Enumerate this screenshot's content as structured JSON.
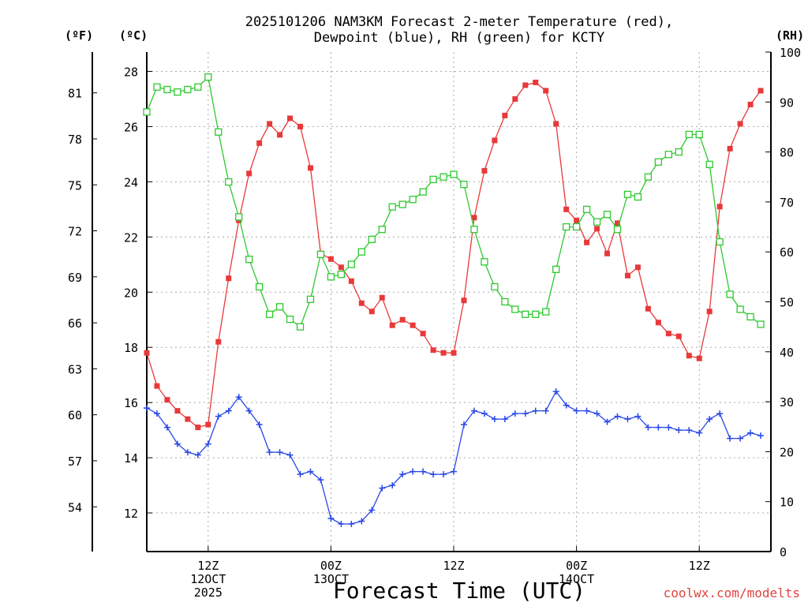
{
  "chart_data": {
    "type": "line",
    "title_line1": "2025101206 NAM3KM Forecast 2-meter Temperature (red),",
    "title_line2": "Dewpoint (blue), RH (green) for KCTY",
    "xlabel": "Forecast Time (UTC)",
    "units": {
      "fahrenheit": "(ºF)",
      "celsius": "(ºC)",
      "rh": "(RH)"
    },
    "forecast_hours": [
      0,
      61
    ],
    "ylim_celsius": [
      10.6,
      28.7
    ],
    "ylim_rh": [
      0,
      100
    ],
    "y_ticks_celsius": [
      12,
      14,
      16,
      18,
      20,
      22,
      24,
      26,
      28
    ],
    "y_ticks_fahrenheit": [
      54,
      57,
      60,
      63,
      66,
      69,
      72,
      75,
      78,
      81
    ],
    "y_ticks_rh": [
      0,
      10,
      20,
      30,
      40,
      50,
      60,
      70,
      80,
      90,
      100
    ],
    "x_ticks": [
      {
        "hour": 6,
        "lines": [
          "12Z",
          "12OCT",
          "2025"
        ]
      },
      {
        "hour": 18,
        "lines": [
          "00Z",
          "13OCT"
        ]
      },
      {
        "hour": 30,
        "lines": [
          "12Z"
        ]
      },
      {
        "hour": 42,
        "lines": [
          "00Z",
          "14OCT"
        ]
      },
      {
        "hour": 54,
        "lines": [
          "12Z"
        ]
      }
    ],
    "series": [
      {
        "name": "Temperature",
        "units": "C",
        "color": "#e8393a",
        "marker": "filled-square",
        "values": [
          17.8,
          16.6,
          16.1,
          15.7,
          15.4,
          15.1,
          15.2,
          18.2,
          20.5,
          22.6,
          24.3,
          25.4,
          26.1,
          25.7,
          26.3,
          26.0,
          24.5,
          21.4,
          21.2,
          20.9,
          20.4,
          19.6,
          19.3,
          19.8,
          18.8,
          19.0,
          18.8,
          18.5,
          17.9,
          17.8,
          17.8,
          19.7,
          22.7,
          24.4,
          25.5,
          26.4,
          27.0,
          27.5,
          27.6,
          27.3,
          26.1,
          23.0,
          22.6,
          21.8,
          22.3,
          21.4,
          22.5,
          20.6,
          20.9,
          19.4,
          18.9,
          18.5,
          18.4,
          17.7,
          17.6,
          19.3,
          23.1,
          25.2,
          26.1,
          26.8,
          27.3
        ]
      },
      {
        "name": "Dewpoint",
        "units": "C",
        "color": "#2948e8",
        "marker": "plus",
        "values": [
          15.8,
          15.6,
          15.1,
          14.5,
          14.2,
          14.1,
          14.5,
          15.5,
          15.7,
          16.2,
          15.7,
          15.2,
          14.2,
          14.2,
          14.1,
          13.4,
          13.5,
          13.2,
          11.8,
          11.6,
          11.6,
          11.7,
          12.1,
          12.9,
          13.0,
          13.4,
          13.5,
          13.5,
          13.4,
          13.4,
          13.5,
          15.2,
          15.7,
          15.6,
          15.4,
          15.4,
          15.6,
          15.6,
          15.7,
          15.7,
          16.4,
          15.9,
          15.7,
          15.7,
          15.6,
          15.3,
          15.5,
          15.4,
          15.5,
          15.1,
          15.1,
          15.1,
          15.0,
          15.0,
          14.9,
          15.4,
          15.6,
          14.7,
          14.7,
          14.9,
          14.8
        ]
      },
      {
        "name": "RH",
        "units": "%",
        "color": "#2ec92e",
        "marker": "open-square",
        "values": [
          88,
          93,
          92.5,
          92,
          92.5,
          93,
          95,
          84,
          74,
          67,
          58.5,
          53,
          47.5,
          49,
          46.5,
          45,
          50.5,
          59.5,
          55,
          55.5,
          57.5,
          60,
          62.5,
          64.5,
          69,
          69.5,
          70.5,
          72,
          74.5,
          75,
          75.5,
          73.5,
          64.5,
          58,
          53,
          50,
          48.5,
          47.5,
          47.5,
          48,
          56.5,
          65,
          65,
          68.5,
          66,
          67.5,
          64.5,
          71.5,
          71,
          75,
          78,
          79.5,
          80,
          83.5,
          83.5,
          77.5,
          62,
          51.5,
          48.5,
          47,
          45.5
        ]
      }
    ]
  },
  "footer": {
    "credit": "coolwx.com/modelts"
  }
}
